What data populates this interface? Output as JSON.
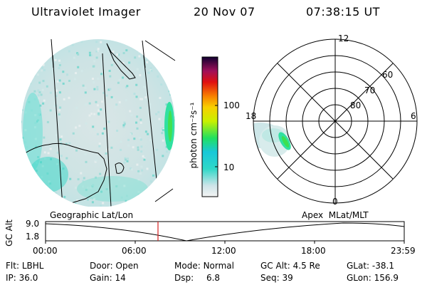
{
  "header": {
    "instrument": "Ultraviolet Imager",
    "date": "20 Nov 07",
    "time": "07:38:15 UT"
  },
  "colors": {
    "background": "#ffffff",
    "foreground": "#000000",
    "time_marker": "#d62020",
    "emission_faint": "#cfe6e8",
    "emission_bright": "#20e0c0",
    "emission_peak": "#3ce050"
  },
  "colorbar": {
    "unit_label": "photon cm⁻²s⁻¹",
    "ticks": [
      "100",
      "10"
    ]
  },
  "polar_plot": {
    "latitude_labels": [
      "80",
      "70",
      "60"
    ],
    "mlt_labels": [
      "12",
      "18",
      "6",
      "0"
    ]
  },
  "orbit_panel": {
    "left_label": "Geographic Lat/Lon",
    "right_label": "Apex  MLat/MLT",
    "axis_label": "GC Alt",
    "y_ticks": [
      "9.0",
      "1.8"
    ],
    "time_ticks": [
      "00:00",
      "06:00",
      "12:00",
      "18:00",
      "23:59"
    ]
  },
  "status": {
    "filter": {
      "label": "Flt:",
      "value": "LBHL"
    },
    "ip": {
      "label": "IP:",
      "value": "36.0"
    },
    "door": {
      "label": "Door:",
      "value": "Open"
    },
    "gain": {
      "label": "Gain:",
      "value": "14"
    },
    "mode": {
      "label": "Mode:",
      "value": "Normal"
    },
    "dsp": {
      "label": "Dsp:",
      "value": "6.8"
    },
    "gc_alt": {
      "label": "GC Alt:",
      "value": "4.5 Re"
    },
    "seq": {
      "label": "Seq:",
      "value": "39"
    },
    "glat": {
      "label": "GLat:",
      "value": "-38.1"
    },
    "glon": {
      "label": "GLon:",
      "value": "156.9"
    }
  }
}
